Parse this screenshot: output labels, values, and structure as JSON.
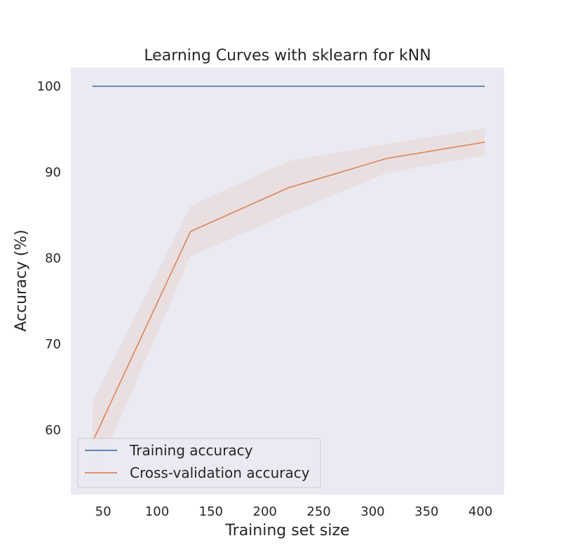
{
  "chart_data": {
    "type": "line",
    "title": "Learning Curves with sklearn for kNN",
    "xlabel": "Training set size",
    "ylabel": "Accuracy (%)",
    "xlim": [
      20,
      422
    ],
    "ylim": [
      52.5,
      102.2
    ],
    "xticks": [
      50,
      100,
      150,
      200,
      250,
      300,
      350,
      400
    ],
    "yticks": [
      60,
      70,
      80,
      90,
      100
    ],
    "grid": false,
    "legend_position": "lower-left",
    "background": "#eaeaf2",
    "series": [
      {
        "name": "Training accuracy",
        "color": "#4c72b0",
        "x": [
          40,
          131,
          222,
          313,
          404
        ],
        "y": [
          100,
          100,
          100,
          100,
          100
        ],
        "band": null
      },
      {
        "name": "Cross-validation accuracy",
        "color": "#dd8452",
        "band_color": "#dd8452",
        "x": [
          40,
          131,
          222,
          313,
          404
        ],
        "y": [
          58.6,
          83.1,
          88.2,
          91.6,
          93.5
        ],
        "lower": [
          53.9,
          80.2,
          85.2,
          89.9,
          92.0
        ],
        "upper": [
          63.3,
          86.1,
          91.3,
          93.3,
          95.1
        ]
      }
    ]
  }
}
